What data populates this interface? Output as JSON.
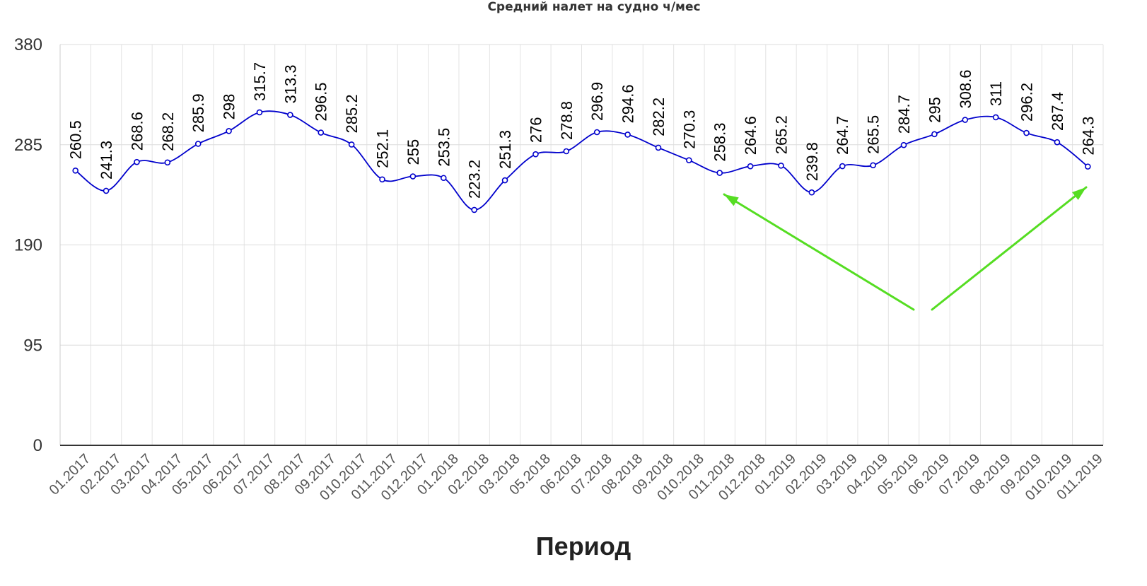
{
  "chart_data": {
    "type": "line",
    "title": "Средний налет на судно ч/мес",
    "xlabel": "Период",
    "ylabel": "",
    "ylim": [
      0,
      380
    ],
    "yticks": [
      "0",
      "95",
      "190",
      "285",
      "380"
    ],
    "grid": true,
    "line_color": "#0000cc",
    "annotation_arrow_color": "#55dd22",
    "categories": [
      "01.2017",
      "02.2017",
      "03.2017",
      "04.2017",
      "05.2017",
      "06.2017",
      "07.2017",
      "08.2017",
      "09.2017",
      "010.2017",
      "011.2017",
      "012.2017",
      "01.2018",
      "02.2018",
      "03.2018",
      "05.2018",
      "06.2018",
      "07.2018",
      "08.2018",
      "09.2018",
      "010.2018",
      "011.2018",
      "012.2018",
      "01.2019",
      "02.2019",
      "03.2019",
      "04.2019",
      "05.2019",
      "06.2019",
      "07.2019",
      "08.2019",
      "09.2019",
      "010.2019",
      "011.2019"
    ],
    "values": [
      260.5,
      241.3,
      268.6,
      268.2,
      285.9,
      298,
      315.7,
      313.3,
      296.5,
      285.2,
      252.1,
      255,
      253.5,
      223.2,
      251.3,
      276,
      278.8,
      296.9,
      294.6,
      282.2,
      270.3,
      258.3,
      264.6,
      265.2,
      239.8,
      264.7,
      265.5,
      284.7,
      295,
      308.6,
      311,
      296.2,
      287.4,
      264.3
    ],
    "value_labels": [
      "260.5",
      "241.3",
      "268.6",
      "268.2",
      "285.9",
      "298",
      "315.7",
      "313.3",
      "296.5",
      "285.2",
      "252.1",
      "255",
      "253.5",
      "223.2",
      "251.3",
      "276",
      "278.8",
      "296.9",
      "294.6",
      "282.2",
      "270.3",
      "258.3",
      "264.6",
      "265.2",
      "239.8",
      "264.7",
      "265.5",
      "284.7",
      "295",
      "308.6",
      "311",
      "296.2",
      "287.4",
      "264.3"
    ]
  }
}
